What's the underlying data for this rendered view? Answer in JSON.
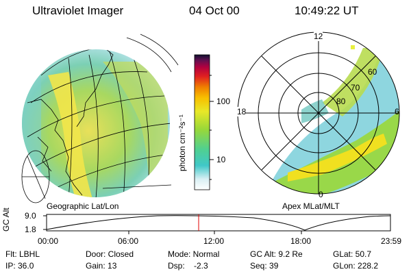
{
  "header": {
    "title": "Ultraviolet Imager",
    "date": "04 Oct 00",
    "time": "10:49:22 UT"
  },
  "colorbar": {
    "unit_label": "photon cm⁻²s⁻¹",
    "ticks": [
      "100",
      "10"
    ]
  },
  "panels": {
    "left_label": "Geographic Lat/Lon",
    "right_label": "Apex MLat/MLT"
  },
  "polar": {
    "mlt_labels": {
      "top": "12",
      "left": "18",
      "right": "6",
      "bottom": "0"
    },
    "lat_labels": [
      "60",
      "70",
      "80"
    ]
  },
  "altitude_plot": {
    "ylabel": "GC Alt",
    "yticks": [
      "9.0",
      "1.8"
    ],
    "xticks": [
      "00:00",
      "06:00",
      "12:00",
      "18:00",
      "23:59"
    ],
    "marker_time": "10:49",
    "marker_color": "#e00000"
  },
  "info": {
    "row1": {
      "flt": "Flt: LBHL",
      "door": "Door: Closed",
      "mode": "Mode: Normal",
      "gc_alt": "GC Alt: 9.2 Re",
      "glat": "GLat:  50.7"
    },
    "row2": {
      "ip": "IP: 36.0",
      "gain": "Gain: 13",
      "dsp": "Dsp:    -2.3",
      "seq": "Seq: 39",
      "glon": "GLon: 228.2"
    }
  },
  "colors": {
    "aurora_high": "#f0e020",
    "aurora_mid": "#7dd23c",
    "aurora_low": "#40c8c8"
  }
}
